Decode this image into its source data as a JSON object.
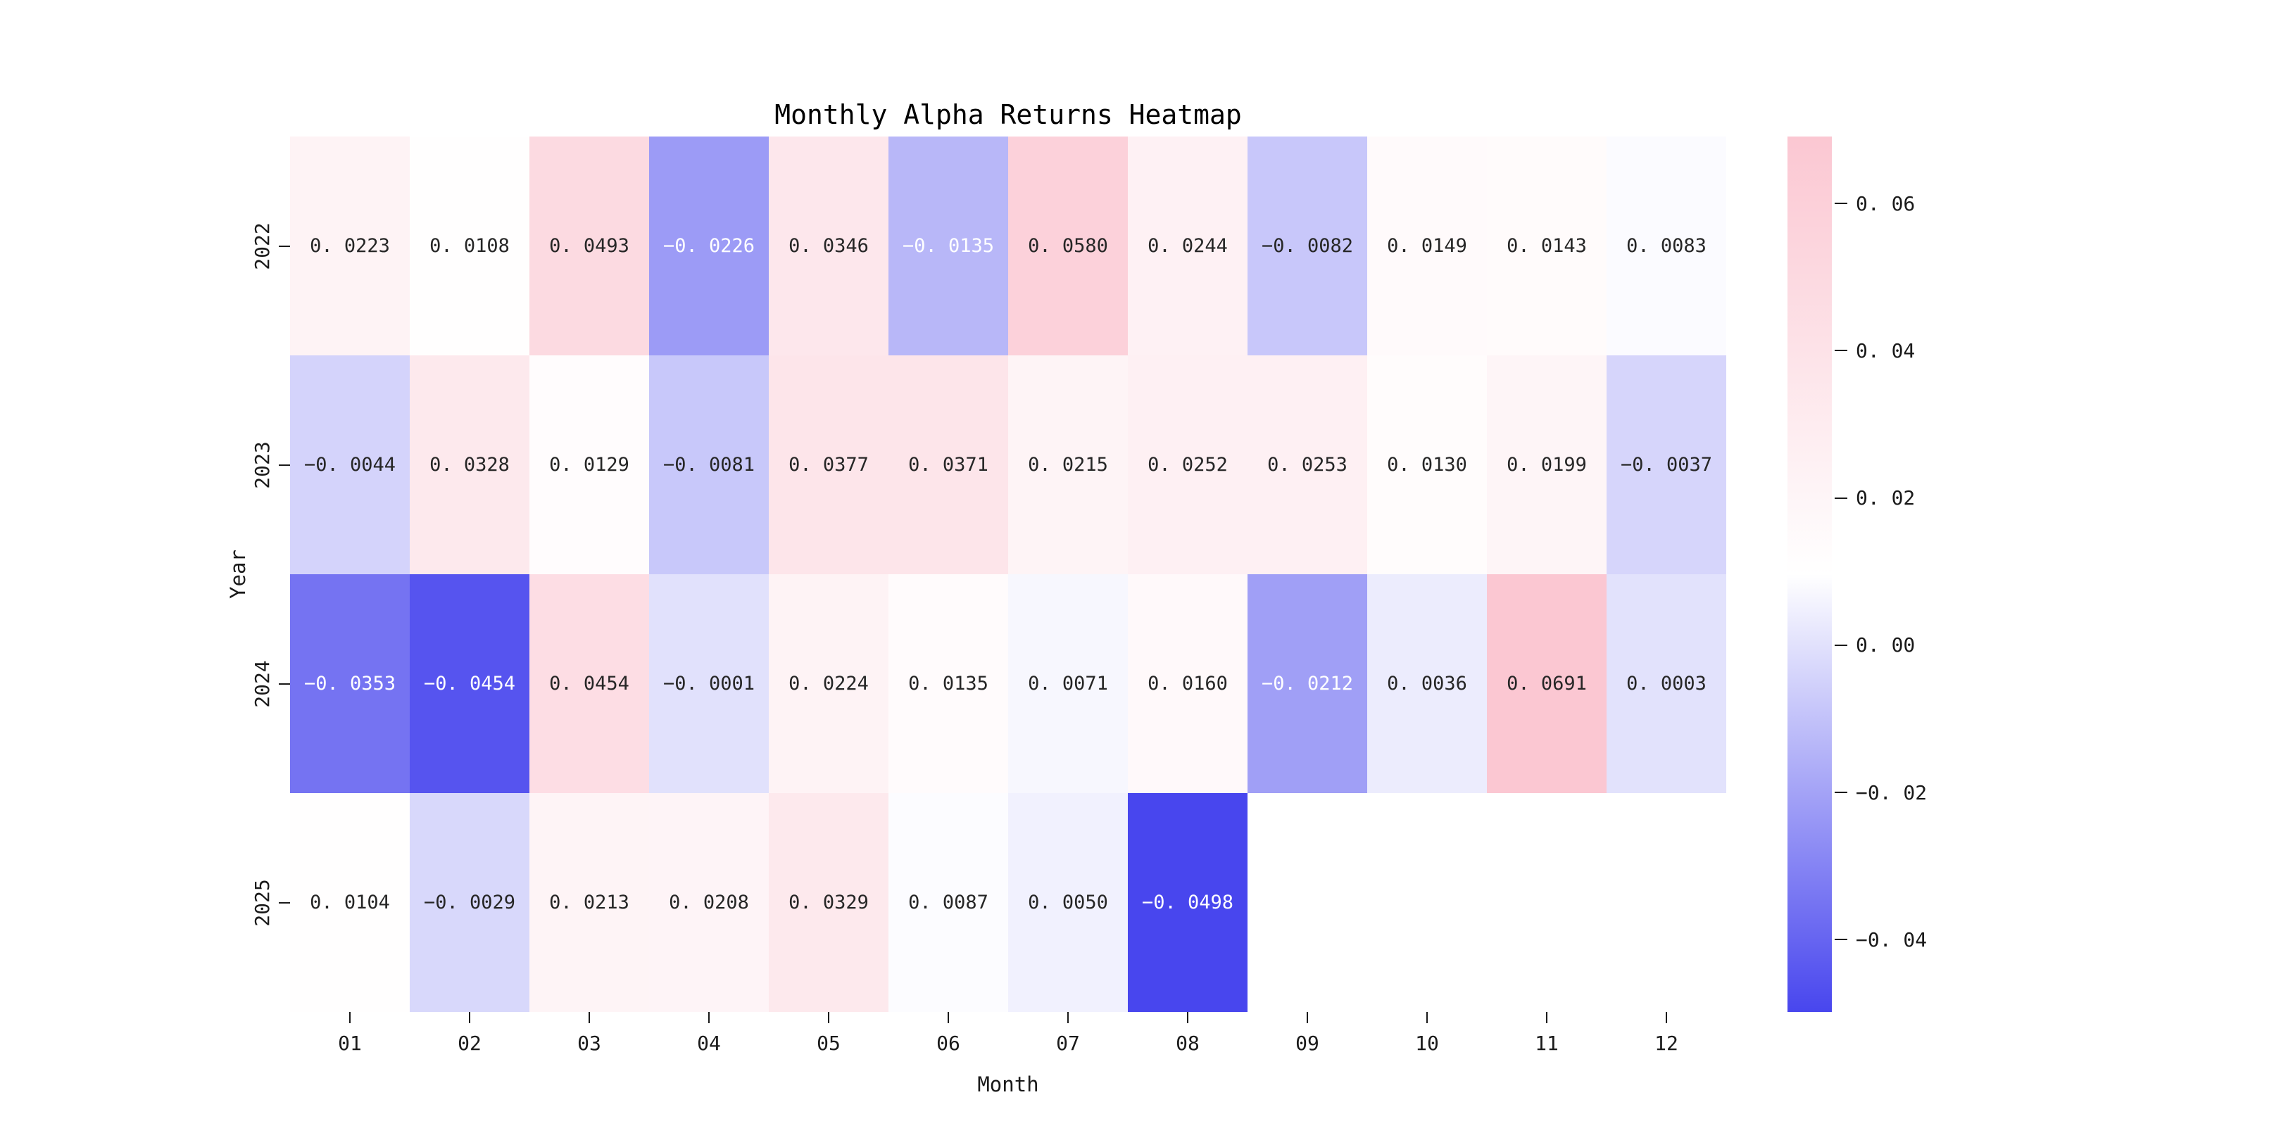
{
  "chart_data": {
    "type": "heatmap",
    "title": "Monthly Alpha Returns Heatmap",
    "xlabel": "Month",
    "ylabel": "Year",
    "x_categories": [
      "01",
      "02",
      "03",
      "04",
      "05",
      "06",
      "07",
      "08",
      "09",
      "10",
      "11",
      "12"
    ],
    "y_categories": [
      "2022",
      "2023",
      "2024",
      "2025"
    ],
    "series": [
      {
        "name": "2022",
        "values": [
          0.0223,
          0.0108,
          0.0493,
          -0.0226,
          0.0346,
          -0.0135,
          0.058,
          0.0244,
          -0.0082,
          0.0149,
          0.0143,
          0.0083
        ]
      },
      {
        "name": "2023",
        "values": [
          -0.0044,
          0.0328,
          0.0129,
          -0.0081,
          0.0377,
          0.0371,
          0.0215,
          0.0252,
          0.0253,
          0.013,
          0.0199,
          -0.0037
        ]
      },
      {
        "name": "2024",
        "values": [
          -0.0353,
          -0.0454,
          0.0454,
          -0.0001,
          0.0224,
          0.0135,
          0.0071,
          0.016,
          -0.0212,
          0.0036,
          0.0691,
          0.0003
        ]
      },
      {
        "name": "2025",
        "values": [
          0.0104,
          -0.0029,
          0.0213,
          0.0208,
          0.0329,
          0.0087,
          0.005,
          -0.0498,
          null,
          null,
          null,
          null
        ]
      }
    ],
    "annotation_decimals": 4,
    "colorbar": {
      "vmin": -0.0498,
      "vmax": 0.0691,
      "color_min": "#4846ee",
      "color_mid": "#ffffff",
      "color_max": "#fbc7d2",
      "tick_labels": [
        "0.06",
        "0.04",
        "0.02",
        "0.00",
        "−0.02",
        "−0.04"
      ],
      "tick_values": [
        0.06,
        0.04,
        0.02,
        0.0,
        -0.02,
        -0.04
      ],
      "legend_position": "right"
    },
    "grid": "off",
    "annotation_text_dark": "#262626",
    "annotation_text_light": "#ffffff"
  }
}
